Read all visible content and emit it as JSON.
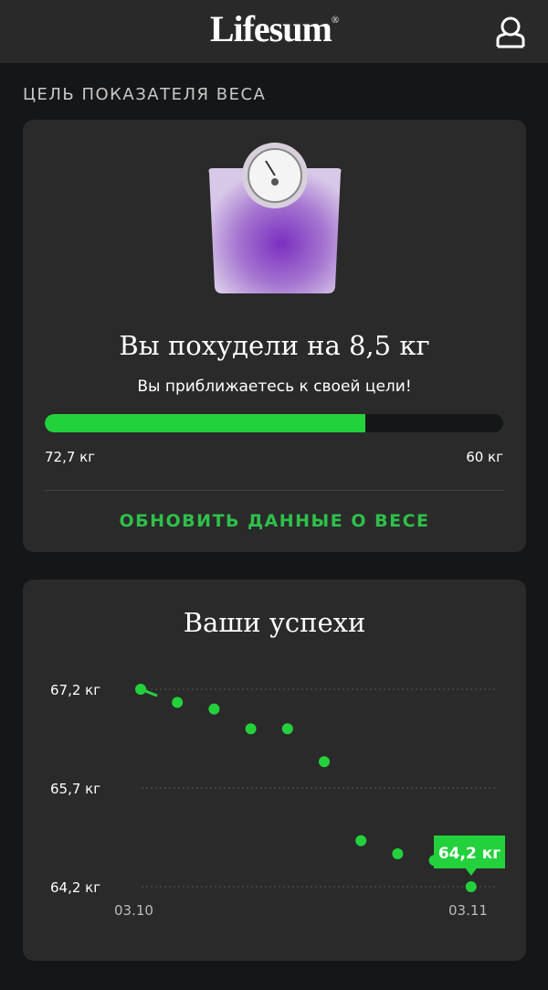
{
  "header": {
    "logo": "Lifesum",
    "registered": "®",
    "profile_icon": "user-icon"
  },
  "goal": {
    "section_title": "ЦЕЛЬ ПОКАЗАТЕЛЯ ВЕСА",
    "headline": "Вы похудели на 8,5 кг",
    "subtitle": "Вы приближаетесь к своей цели!",
    "progress": 0.7,
    "start_label": "72,7 кг",
    "goal_label": "60 кг",
    "update_button": "ОБНОВИТЬ ДАННЫЕ О ВЕСЕ",
    "accent": "#23d13c"
  },
  "progress_card": {
    "title": "Ваши успехи"
  },
  "chart_data": {
    "type": "scatter",
    "x_tick_labels": [
      "03.10",
      "03.11"
    ],
    "y_tick_labels": [
      "67,2 кг",
      "65,7 кг",
      "64,2 кг"
    ],
    "y_ticks": [
      67.2,
      65.7,
      64.2
    ],
    "ylim": [
      64.2,
      67.2
    ],
    "values": [
      67.2,
      67.0,
      66.9,
      66.6,
      66.6,
      66.1,
      64.9,
      64.7,
      64.6,
      64.2
    ],
    "highlight_label": "64,2 кг",
    "grid": true,
    "color": "#23d13c"
  }
}
